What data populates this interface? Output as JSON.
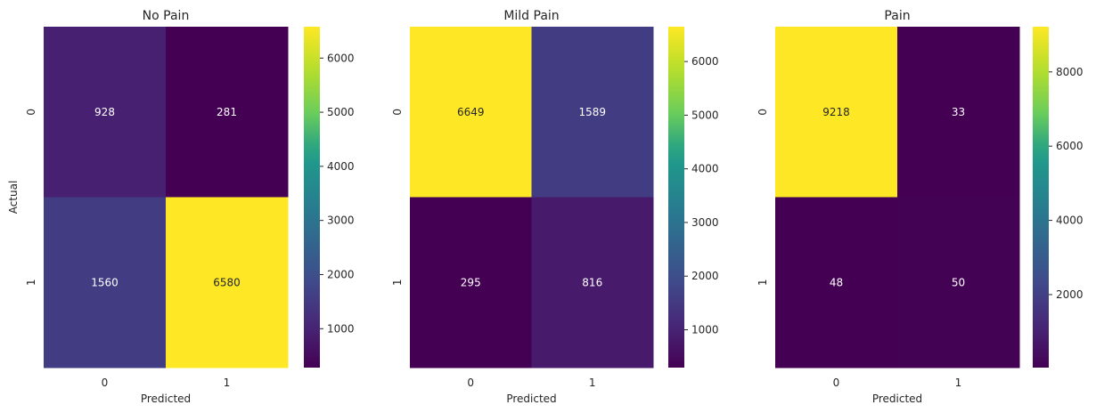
{
  "chart_data": [
    {
      "type": "heatmap",
      "title": "No Pain",
      "xlabel": "Predicted",
      "ylabel": "Actual",
      "x_categories": [
        "0",
        "1"
      ],
      "y_categories": [
        "0",
        "1"
      ],
      "values": [
        [
          928,
          281
        ],
        [
          1560,
          6580
        ]
      ],
      "colormap": "viridis",
      "color_range": [
        281,
        6580
      ],
      "colorbar_ticks": [
        1000,
        2000,
        3000,
        4000,
        5000,
        6000
      ]
    },
    {
      "type": "heatmap",
      "title": "Mild Pain",
      "xlabel": "Predicted",
      "ylabel": "",
      "x_categories": [
        "0",
        "1"
      ],
      "y_categories": [
        "0",
        "1"
      ],
      "values": [
        [
          6649,
          1589
        ],
        [
          295,
          816
        ]
      ],
      "colormap": "viridis",
      "color_range": [
        295,
        6649
      ],
      "colorbar_ticks": [
        1000,
        2000,
        3000,
        4000,
        5000,
        6000
      ]
    },
    {
      "type": "heatmap",
      "title": "Pain",
      "xlabel": "Predicted",
      "ylabel": "",
      "x_categories": [
        "0",
        "1"
      ],
      "y_categories": [
        "0",
        "1"
      ],
      "values": [
        [
          9218,
          33
        ],
        [
          48,
          50
        ]
      ],
      "colormap": "viridis",
      "color_range": [
        33,
        9218
      ],
      "colorbar_ticks": [
        2000,
        4000,
        6000,
        8000
      ]
    }
  ]
}
